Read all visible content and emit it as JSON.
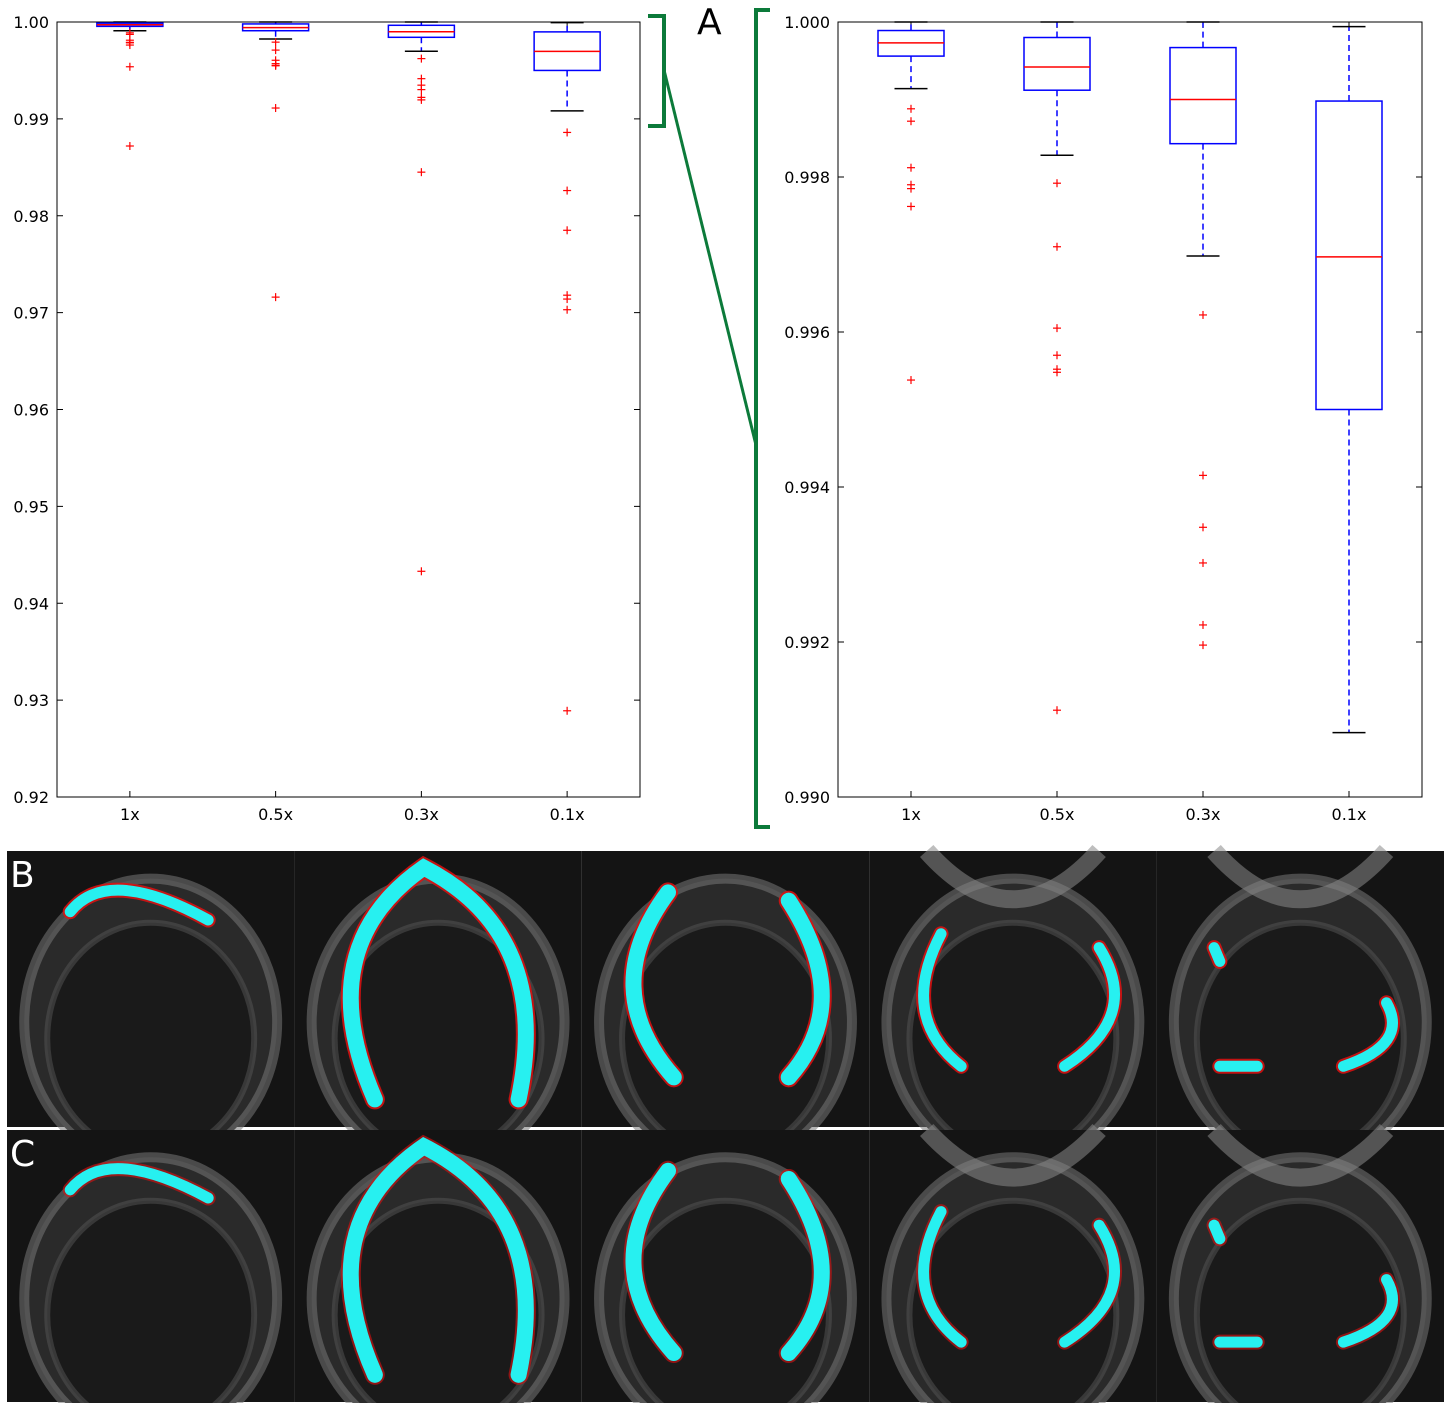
{
  "panels": {
    "a": "A",
    "b": "B",
    "c": "C"
  },
  "colors": {
    "box": "#0000ff",
    "median": "#ff0000",
    "flier": "#ff0000",
    "whisker_cap": "#000000",
    "bracket": "#0c7a3a",
    "overlay_cyan": "#27f0f0",
    "overlay_red": "#e01010",
    "background_dark": "#141414"
  },
  "chart_data": [
    {
      "type": "box",
      "categories": [
        "1x",
        "0.5x",
        "0.3x",
        "0.1x"
      ],
      "ylim": [
        0.92,
        1.0
      ],
      "yticks": [
        0.92,
        0.93,
        0.94,
        0.95,
        0.96,
        0.97,
        0.98,
        0.99,
        1.0
      ],
      "ytick_labels": [
        "0.92",
        "0.93",
        "0.94",
        "0.95",
        "0.96",
        "0.97",
        "0.98",
        "0.99",
        "1.00"
      ],
      "boxes": [
        {
          "whislo": 0.9991,
          "q1": 0.99955,
          "med": 0.99972,
          "q3": 0.99988,
          "whishi": 1.0,
          "fliers": [
            0.99888,
            0.99872,
            0.99812,
            0.9979,
            0.99785,
            0.99762,
            0.99538,
            0.9872
          ]
        },
        {
          "whislo": 0.99825,
          "q1": 0.9991,
          "med": 0.99942,
          "q3": 0.9998,
          "whishi": 1.0,
          "fliers": [
            0.99792,
            0.9971,
            0.99605,
            0.9957,
            0.99552,
            0.99548,
            0.99112,
            0.9716
          ]
        },
        {
          "whislo": 0.99698,
          "q1": 0.99842,
          "med": 0.999,
          "q3": 0.99966,
          "whishi": 1.0,
          "fliers": [
            0.99622,
            0.99415,
            0.99348,
            0.99302,
            0.99222,
            0.99196,
            0.9845,
            0.9433
          ]
        },
        {
          "whislo": 0.99082,
          "q1": 0.995,
          "med": 0.99697,
          "q3": 0.99898,
          "whishi": 0.99994,
          "fliers": [
            0.9886,
            0.9826,
            0.9785,
            0.9718,
            0.9714,
            0.9703,
            0.9289
          ]
        }
      ]
    },
    {
      "type": "box",
      "categories": [
        "1x",
        "0.5x",
        "0.3x",
        "0.1x"
      ],
      "ylim": [
        0.99,
        1.0
      ],
      "yticks": [
        0.99,
        0.992,
        0.994,
        0.996,
        0.998,
        1.0
      ],
      "ytick_labels": [
        "0.990",
        "0.992",
        "0.994",
        "0.996",
        "0.998",
        "1.000"
      ],
      "boxes": [
        {
          "whislo": 0.99914,
          "q1": 0.99956,
          "med": 0.99973,
          "q3": 0.99989,
          "whishi": 1.0,
          "fliers": [
            0.99888,
            0.99872,
            0.99812,
            0.9979,
            0.99785,
            0.99762,
            0.99538
          ]
        },
        {
          "whislo": 0.99828,
          "q1": 0.99912,
          "med": 0.99942,
          "q3": 0.9998,
          "whishi": 1.0,
          "fliers": [
            0.99792,
            0.9971,
            0.99605,
            0.9957,
            0.99552,
            0.99548,
            0.99112
          ]
        },
        {
          "whislo": 0.99698,
          "q1": 0.99843,
          "med": 0.999,
          "q3": 0.99967,
          "whishi": 1.0,
          "fliers": [
            0.99622,
            0.99415,
            0.99348,
            0.99302,
            0.99222,
            0.99196
          ]
        },
        {
          "whislo": 0.99083,
          "q1": 0.995,
          "med": 0.99697,
          "q3": 0.99898,
          "whishi": 0.99994,
          "fliers": []
        }
      ]
    }
  ],
  "image_rows": {
    "b": {
      "count": 5
    },
    "c": {
      "count": 5
    }
  }
}
